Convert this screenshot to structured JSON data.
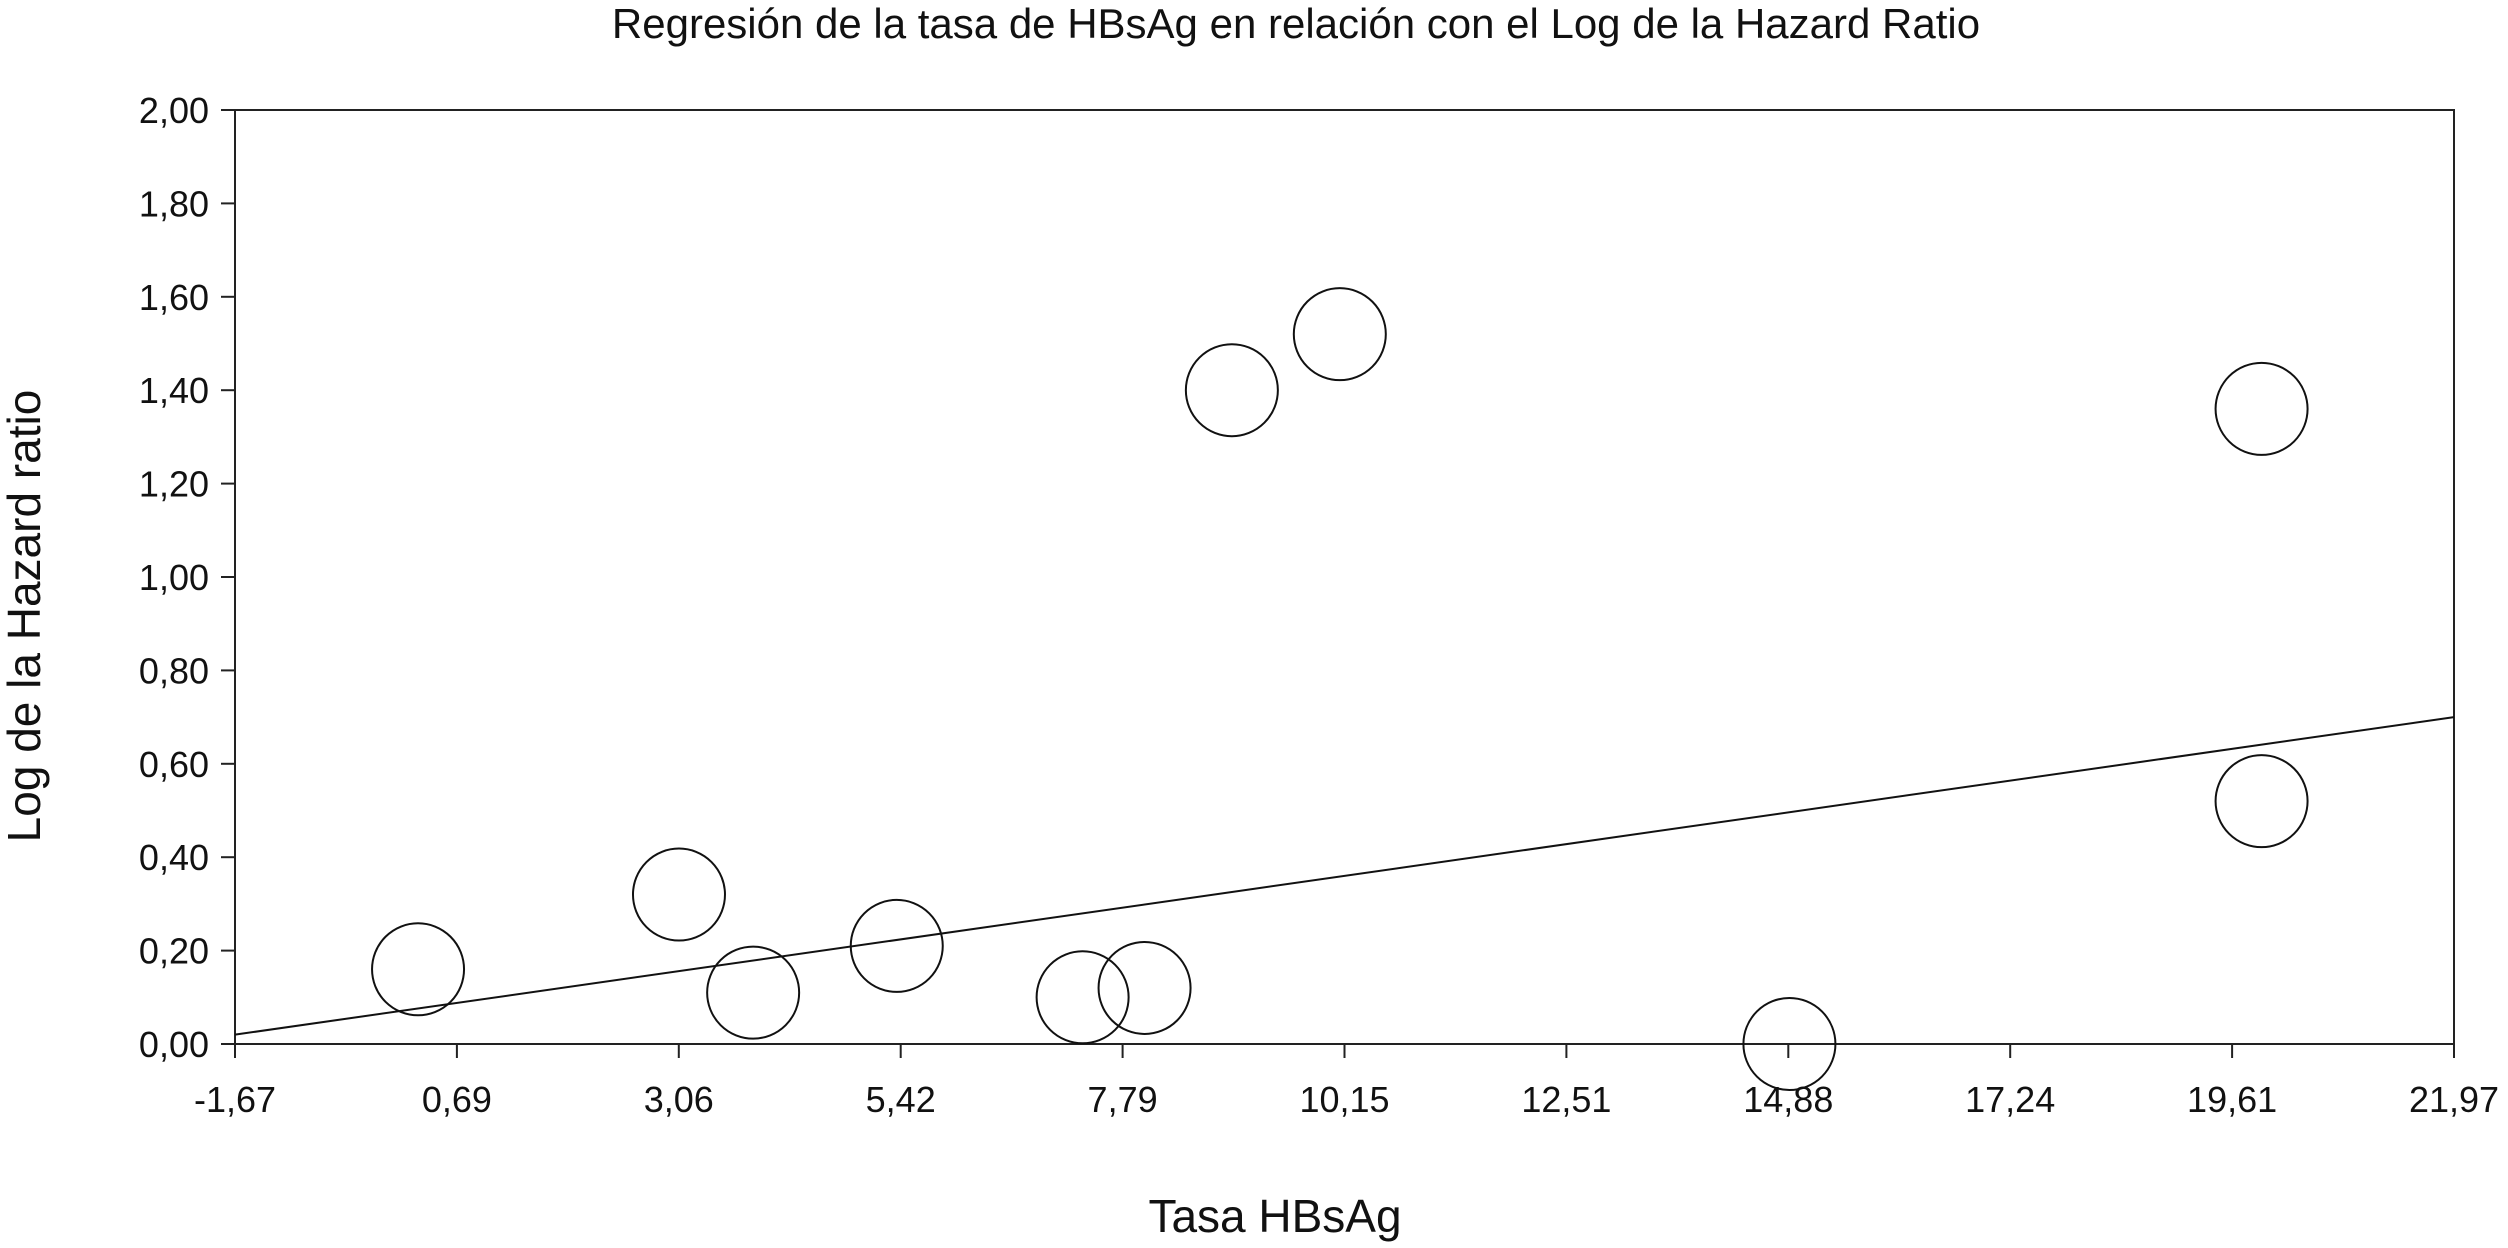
{
  "chart_data": {
    "type": "scatter",
    "title": "Regresión de la tasa de HBsAg en relación con el Log de la Hazard Ratio",
    "xlabel": "Tasa HBsAg",
    "ylabel": "Log de la Hazard ratio",
    "xlim": [
      -1.67,
      21.97
    ],
    "ylim": [
      0,
      2
    ],
    "x_ticks": [
      "-1,67",
      "0,69",
      "3,06",
      "5,42",
      "7,79",
      "10,15",
      "12,51",
      "14,88",
      "17,24",
      "19,61",
      "21,97"
    ],
    "y_ticks": [
      "0,00",
      "0,20",
      "0,40",
      "0,60",
      "0,80",
      "1,00",
      "1,20",
      "1,40",
      "1,60",
      "1,80",
      "2,00"
    ],
    "grid": false,
    "points": [
      {
        "x": 0.28,
        "y": 0.16
      },
      {
        "x": 3.06,
        "y": 0.32
      },
      {
        "x": 3.85,
        "y": 0.11
      },
      {
        "x": 5.38,
        "y": 0.21
      },
      {
        "x": 7.36,
        "y": 0.1
      },
      {
        "x": 8.02,
        "y": 0.12
      },
      {
        "x": 8.95,
        "y": 1.4
      },
      {
        "x": 10.1,
        "y": 1.52
      },
      {
        "x": 14.89,
        "y": 0.0
      },
      {
        "x": 19.92,
        "y": 1.36
      },
      {
        "x": 19.92,
        "y": 0.52
      }
    ],
    "regression_line": {
      "x": [
        -1.67,
        21.97
      ],
      "y": [
        0.02,
        0.7
      ]
    }
  }
}
